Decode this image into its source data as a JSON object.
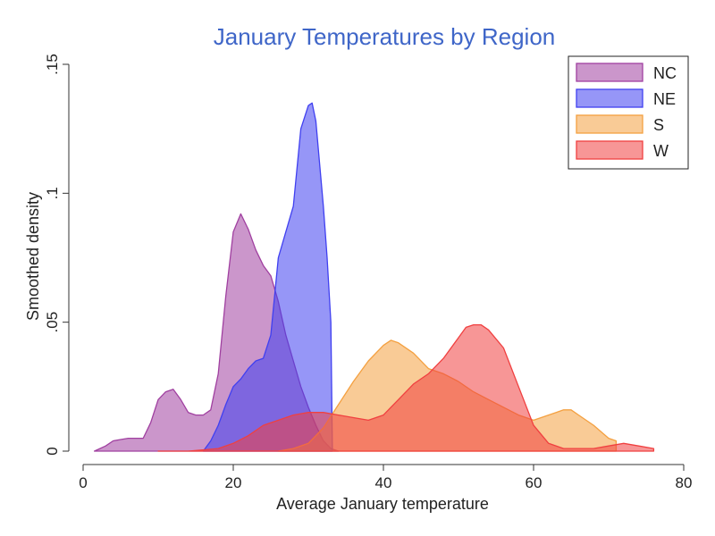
{
  "chart_data": {
    "type": "area",
    "title": "January Temperatures by Region",
    "xlabel": "Average January temperature",
    "ylabel": "Smoothed density",
    "xlim": [
      0,
      80
    ],
    "ylim": [
      0,
      0.15
    ],
    "x_ticks": [
      0,
      20,
      40,
      60,
      80
    ],
    "x_tick_labels": [
      "0",
      "20",
      "40",
      "60",
      "80"
    ],
    "y_ticks": [
      0,
      0.05,
      0.1,
      0.15
    ],
    "y_tick_labels": [
      "0",
      ".05",
      ".1",
      ".15"
    ],
    "grid": false,
    "legend_position": "top-right",
    "series": [
      {
        "name": "NC",
        "color": "#a040a0",
        "fill_opacity": 0.55,
        "x": [
          1.5,
          3,
          4,
          5,
          6,
          7,
          8,
          9,
          10,
          11,
          12,
          13,
          14,
          15,
          16,
          17,
          18,
          19,
          20,
          21,
          22,
          23,
          24,
          25,
          26,
          27,
          28,
          29,
          30,
          31,
          32,
          33,
          34
        ],
        "y": [
          0.0,
          0.002,
          0.004,
          0.0045,
          0.005,
          0.005,
          0.005,
          0.011,
          0.02,
          0.023,
          0.024,
          0.02,
          0.015,
          0.014,
          0.014,
          0.016,
          0.03,
          0.06,
          0.085,
          0.092,
          0.086,
          0.078,
          0.072,
          0.068,
          0.058,
          0.045,
          0.035,
          0.025,
          0.017,
          0.01,
          0.004,
          0.001,
          0.0
        ]
      },
      {
        "name": "NE",
        "color": "#4040f0",
        "fill_opacity": 0.55,
        "x": [
          16,
          17,
          18,
          19,
          20,
          21,
          22,
          23,
          24,
          25,
          26,
          27,
          28,
          29,
          30,
          30.5,
          31,
          32,
          32.5,
          33,
          33.2
        ],
        "y": [
          0.0,
          0.004,
          0.01,
          0.018,
          0.025,
          0.028,
          0.032,
          0.035,
          0.036,
          0.045,
          0.075,
          0.085,
          0.095,
          0.125,
          0.134,
          0.135,
          0.128,
          0.095,
          0.075,
          0.05,
          0.0
        ]
      },
      {
        "name": "S",
        "color": "#f4a040",
        "fill_opacity": 0.55,
        "x": [
          26,
          28,
          30,
          32,
          34,
          36,
          38,
          40,
          41,
          42,
          44,
          46,
          48,
          50,
          52,
          54,
          56,
          58,
          60,
          62,
          63,
          64,
          65,
          66,
          68,
          70,
          71,
          71
        ],
        "y": [
          0.0,
          0.001,
          0.003,
          0.009,
          0.018,
          0.027,
          0.035,
          0.041,
          0.043,
          0.042,
          0.038,
          0.032,
          0.03,
          0.027,
          0.023,
          0.02,
          0.017,
          0.014,
          0.012,
          0.014,
          0.015,
          0.016,
          0.016,
          0.014,
          0.01,
          0.005,
          0.004,
          0.0
        ]
      },
      {
        "name": "W",
        "color": "#f04040",
        "fill_opacity": 0.55,
        "x": [
          10,
          14,
          18,
          20,
          22,
          24,
          26,
          28,
          30,
          32,
          34,
          36,
          38,
          40,
          42,
          44,
          46,
          48,
          50,
          51,
          52,
          53,
          54,
          56,
          58,
          60,
          62,
          64,
          66,
          68,
          70,
          72,
          74,
          76,
          76
        ],
        "y": [
          0.0,
          0.0,
          0.001,
          0.003,
          0.006,
          0.01,
          0.012,
          0.014,
          0.015,
          0.015,
          0.014,
          0.013,
          0.012,
          0.014,
          0.02,
          0.026,
          0.03,
          0.036,
          0.044,
          0.048,
          0.049,
          0.049,
          0.047,
          0.04,
          0.025,
          0.01,
          0.003,
          0.001,
          0.001,
          0.001,
          0.002,
          0.003,
          0.002,
          0.001,
          0.0
        ]
      }
    ]
  }
}
